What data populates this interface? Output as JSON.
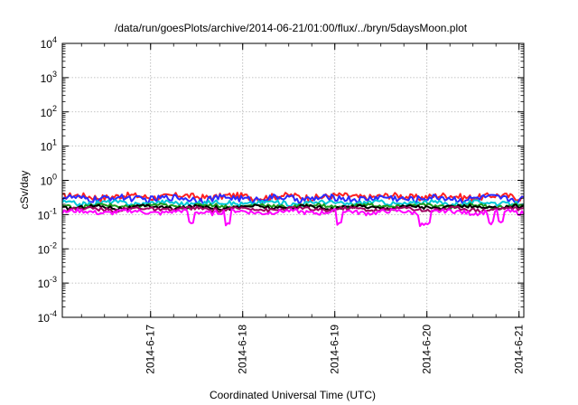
{
  "chart_data": {
    "type": "line",
    "title": "/data/run/goesPlots/archive/2014-06-21/01:00/flux/../bryn/5daysMoon.plot",
    "xlabel": "Coordinated Universal Time (UTC)",
    "ylabel": "cSv/day",
    "yscale": "log",
    "ylim": [
      0.0001,
      10000
    ],
    "xlim": [
      "2014-06-16 01:00",
      "2014-06-21 01:15"
    ],
    "grid": true,
    "x_ticks": [
      "2014-6-17",
      "2014-6-18",
      "2014-6-19",
      "2014-6-20",
      "2014-6-21"
    ],
    "y_ticks": [
      {
        "base": "10",
        "exp": "-4",
        "value": 0.0001
      },
      {
        "base": "10",
        "exp": "-3",
        "value": 0.001
      },
      {
        "base": "10",
        "exp": "-2",
        "value": 0.01
      },
      {
        "base": "10",
        "exp": "-1",
        "value": 0.1
      },
      {
        "base": "10",
        "exp": "0",
        "value": 1
      },
      {
        "base": "10",
        "exp": "1",
        "value": 10
      },
      {
        "base": "10",
        "exp": "2",
        "value": 100
      },
      {
        "base": "10",
        "exp": "3",
        "value": 1000
      },
      {
        "base": "10",
        "exp": "4",
        "value": 10000
      }
    ],
    "series": [
      {
        "color": "#ff2020",
        "base": 0.34,
        "noise": 0.22
      },
      {
        "color": "#2a2aff",
        "base": 0.3,
        "noise": 0.22
      },
      {
        "color": "#00c8d8",
        "base": 0.22,
        "noise": 0.15
      },
      {
        "color": "#1c9c1c",
        "base": 0.18,
        "noise": 0.12
      },
      {
        "color": "#000000",
        "base": 0.165,
        "noise": 0.12
      },
      {
        "color": "#a00060",
        "base": 0.145,
        "noise": 0.12
      },
      {
        "color": "#ff00ff",
        "base": 0.12,
        "noise": 0.14,
        "dips": true
      }
    ]
  }
}
